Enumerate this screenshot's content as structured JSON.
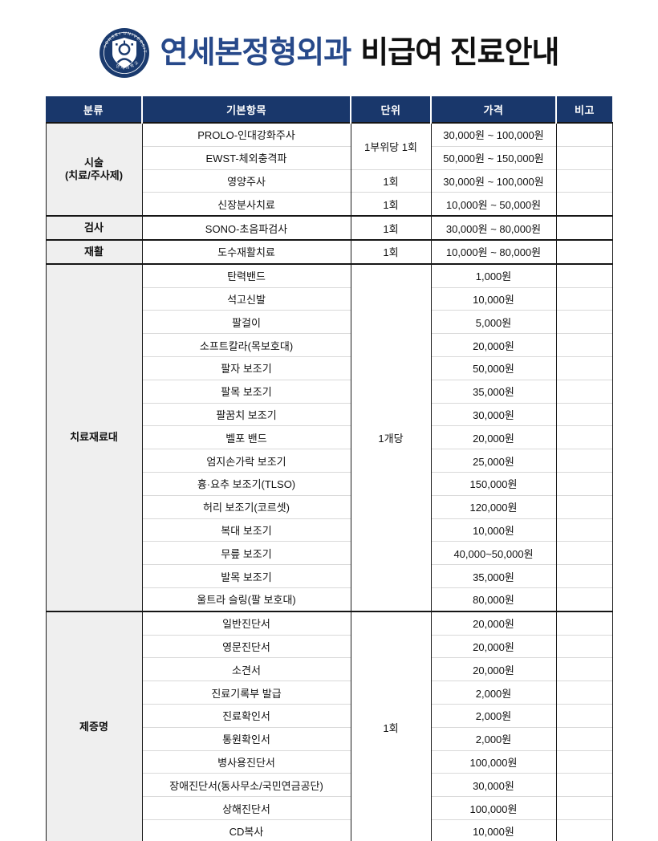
{
  "header": {
    "logo": "yonsei-university-emblem",
    "logo_ring_text": "YONSEI UNIVERSITY",
    "title_brand": "연세본정형외과",
    "title_rest": "비급여 진료안내"
  },
  "colors": {
    "header_navy": "#19376b",
    "brand_blue": "#27498a",
    "category_gray": "#efefef",
    "row_divider_gray": "#d9d9d9",
    "section_line_black": "#151515"
  },
  "table": {
    "columns": [
      "분류",
      "기본항목",
      "단위",
      "가격",
      "비고"
    ],
    "sections": [
      {
        "category_lines": [
          "시술",
          "(치료/주사제)"
        ],
        "rows": [
          {
            "item": "PROLO-인대강화주사",
            "unit": "1부위당 1회",
            "unit_rowspan": 2,
            "price": "30,000원 ~ 100,000원",
            "note": ""
          },
          {
            "item": "EWST-체외충격파",
            "price": "50,000원 ~ 150,000원",
            "note": ""
          },
          {
            "item": "영양주사",
            "unit": "1회",
            "unit_rowspan": 1,
            "price": "30,000원 ~ 100,000원",
            "note": ""
          },
          {
            "item": "신장분사치료",
            "unit": "1회",
            "unit_rowspan": 1,
            "price": "10,000원 ~ 50,000원",
            "note": ""
          }
        ]
      },
      {
        "category_lines": [
          "검사"
        ],
        "rows": [
          {
            "item": "SONO-초음파검사",
            "unit": "1회",
            "unit_rowspan": 1,
            "price": "30,000원 ~ 80,000원",
            "note": ""
          }
        ]
      },
      {
        "category_lines": [
          "재활"
        ],
        "rows": [
          {
            "item": "도수재활치료",
            "unit": "1회",
            "unit_rowspan": 1,
            "price": "10,000원 ~ 80,000원",
            "note": ""
          }
        ]
      },
      {
        "category_lines": [
          "치료재료대"
        ],
        "rows": [
          {
            "item": "탄력밴드",
            "unit": "1개당",
            "unit_rowspan": 15,
            "price": "1,000원",
            "note": ""
          },
          {
            "item": "석고신발",
            "price": "10,000원",
            "note": ""
          },
          {
            "item": "팔걸이",
            "price": "5,000원",
            "note": ""
          },
          {
            "item": "소프트칼라(목보호대)",
            "price": "20,000원",
            "note": ""
          },
          {
            "item": "팔자 보조기",
            "price": "50,000원",
            "note": ""
          },
          {
            "item": "팔목 보조기",
            "price": "35,000원",
            "note": ""
          },
          {
            "item": "팔꿈치 보조기",
            "price": "30,000원",
            "note": ""
          },
          {
            "item": "벨포 밴드",
            "price": "20,000원",
            "note": ""
          },
          {
            "item": "엄지손가락 보조기",
            "price": "25,000원",
            "note": ""
          },
          {
            "item": "흉·요추 보조기(TLSO)",
            "price": "150,000원",
            "note": ""
          },
          {
            "item": "허리 보조기(코르셋)",
            "price": "120,000원",
            "note": ""
          },
          {
            "item": "복대 보조기",
            "price": "10,000원",
            "note": ""
          },
          {
            "item": "무릎 보조기",
            "price": "40,000~50,000원",
            "note": ""
          },
          {
            "item": "발목 보조기",
            "price": "35,000원",
            "note": ""
          },
          {
            "item": "울트라 슬링(팔 보호대)",
            "price": "80,000원",
            "note": ""
          }
        ]
      },
      {
        "category_lines": [
          "제증명"
        ],
        "rows": [
          {
            "item": "일반진단서",
            "unit": "1회",
            "unit_rowspan": 10,
            "price": "20,000원",
            "note": ""
          },
          {
            "item": "영문진단서",
            "price": "20,000원",
            "note": ""
          },
          {
            "item": "소견서",
            "price": "20,000원",
            "note": ""
          },
          {
            "item": "진료기록부 발급",
            "price": "2,000원",
            "note": ""
          },
          {
            "item": "진료확인서",
            "price": "2,000원",
            "note": ""
          },
          {
            "item": "통원확인서",
            "price": "2,000원",
            "note": ""
          },
          {
            "item": "병사용진단서",
            "price": "100,000원",
            "note": ""
          },
          {
            "item": "장애진단서(동사무소/국민연금공단)",
            "price": "30,000원",
            "note": ""
          },
          {
            "item": "상해진단서",
            "price": "100,000원",
            "note": ""
          },
          {
            "item": "CD복사",
            "price": "10,000원",
            "note": ""
          }
        ]
      }
    ]
  }
}
